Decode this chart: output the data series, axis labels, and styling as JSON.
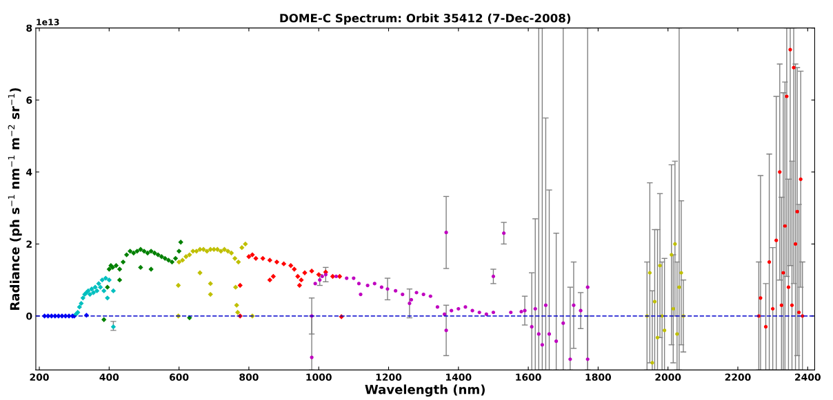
{
  "chart_data": {
    "type": "scatter",
    "title": "DOME-C Spectrum: Orbit 35412 (7-Dec-2008)",
    "xlabel": "Wavelength (nm)",
    "ylabel": "Radiance (ph s$^{−1}$ nm$^{−1}$ m$^{−2}$ sr$^{−1}$)",
    "annotations": [
      "1e13"
    ],
    "xlim": [
      190,
      2420
    ],
    "xticks": [
      200,
      400,
      600,
      800,
      1000,
      1200,
      1400,
      1600,
      1800,
      2000,
      2200,
      2400
    ],
    "ylim": [
      -1.5,
      8
    ],
    "yticks": [
      0,
      2,
      4,
      6,
      8
    ],
    "grid": false,
    "legend": false,
    "marker": "diamond",
    "ref_lines": [
      {
        "axis": "y",
        "value": 0,
        "color": "#0000cc",
        "line_style": "dashed"
      }
    ],
    "series": [
      {
        "color": "#0000ff",
        "x": [
          215,
          225,
          235,
          245,
          255,
          265,
          275,
          285,
          295,
          300,
          335
        ],
        "values": [
          0,
          0,
          0,
          0,
          0,
          0,
          0,
          0,
          0,
          0,
          0.02
        ]
      },
      {
        "color": "#00bfbf",
        "x": [
          305,
          310,
          315,
          320,
          325,
          330,
          335,
          340,
          345,
          350,
          355,
          360,
          365,
          370,
          375,
          380,
          385,
          390,
          395,
          400,
          412,
          412
        ],
        "values": [
          0.05,
          0.1,
          0.25,
          0.35,
          0.5,
          0.6,
          0.65,
          0.7,
          0.6,
          0.75,
          0.65,
          0.8,
          0.7,
          0.9,
          0.8,
          1.0,
          0.7,
          1.05,
          0.5,
          1.0,
          0.7,
          -0.3
        ],
        "errors": [
          null,
          null,
          null,
          null,
          null,
          null,
          null,
          null,
          null,
          null,
          null,
          null,
          null,
          null,
          null,
          null,
          null,
          null,
          null,
          null,
          null,
          [
            -0.4,
            -0.15
          ]
        ]
      },
      {
        "color": "#008000",
        "x": [
          385,
          395,
          400,
          405,
          410,
          420,
          430,
          430,
          440,
          450,
          460,
          470,
          480,
          490,
          490,
          500,
          510,
          520,
          520,
          530,
          540,
          550,
          560,
          570,
          580,
          590,
          600,
          605,
          630
        ],
        "values": [
          -0.1,
          0.8,
          1.3,
          1.4,
          1.35,
          1.4,
          1.3,
          1.0,
          1.5,
          1.7,
          1.8,
          1.75,
          1.8,
          1.85,
          1.35,
          1.8,
          1.75,
          1.8,
          1.3,
          1.75,
          1.7,
          1.65,
          1.6,
          1.55,
          1.5,
          1.6,
          1.8,
          2.05,
          -0.05
        ]
      },
      {
        "color": "#bfbf00",
        "x": [
          598,
          598,
          600,
          610,
          620,
          630,
          640,
          650,
          660,
          660,
          670,
          680,
          690,
          690,
          690,
          700,
          710,
          720,
          730,
          740,
          750,
          760,
          762,
          765,
          768,
          770,
          780,
          790,
          810
        ],
        "values": [
          0.85,
          0.0,
          1.5,
          1.55,
          1.65,
          1.7,
          1.8,
          1.8,
          1.85,
          1.2,
          1.85,
          1.8,
          1.85,
          0.9,
          0.6,
          1.85,
          1.85,
          1.8,
          1.85,
          1.8,
          1.75,
          1.6,
          0.8,
          0.3,
          0.1,
          1.5,
          1.9,
          2.0,
          0.0
        ]
      },
      {
        "color": "#ff0000",
        "x": [
          775,
          775,
          800,
          810,
          820,
          840,
          860,
          860,
          870,
          880,
          900,
          920,
          930,
          940,
          945,
          950,
          960,
          980,
          1000,
          1020,
          1040,
          1060,
          1065
        ],
        "values": [
          0.0,
          0.85,
          1.65,
          1.7,
          1.6,
          1.6,
          1.55,
          1.0,
          1.1,
          1.5,
          1.45,
          1.4,
          1.3,
          1.1,
          0.85,
          1.0,
          1.2,
          1.25,
          1.15,
          1.22,
          1.1,
          1.1,
          -0.02
        ]
      },
      {
        "color": "#bf00bf",
        "marker": "circle",
        "x": [
          980,
          980,
          990,
          1003,
          1010,
          1020,
          1050,
          1080,
          1100,
          1115,
          1120,
          1140,
          1160,
          1180,
          1197,
          1220,
          1240,
          1260,
          1265,
          1280,
          1300,
          1320,
          1340,
          1360,
          1365,
          1365,
          1380,
          1400,
          1420,
          1440,
          1460,
          1480,
          1500,
          1500,
          1530,
          1550,
          1580,
          1590,
          1610,
          1620,
          1630,
          1640,
          1650,
          1660,
          1680,
          1700,
          1720,
          1730,
          1750,
          1770,
          1770
        ],
        "values": [
          0.0,
          -1.15,
          0.9,
          1.0,
          1.1,
          1.15,
          1.1,
          1.05,
          1.05,
          0.9,
          0.6,
          0.85,
          0.9,
          0.8,
          0.75,
          0.7,
          0.6,
          0.35,
          0.45,
          0.65,
          0.6,
          0.55,
          0.25,
          0.05,
          2.32,
          -0.4,
          0.15,
          0.2,
          0.25,
          0.15,
          0.1,
          0.05,
          0.1,
          1.1,
          2.3,
          0.1,
          0.12,
          0.15,
          -0.3,
          0.2,
          -0.5,
          -0.8,
          0.3,
          -0.5,
          -0.7,
          -0.2,
          -1.2,
          0.3,
          0.15,
          0.8,
          -1.2
        ],
        "errors": [
          0.5,
          [
            -1.5,
            0.0
          ],
          null,
          0.15,
          null,
          0.2,
          null,
          null,
          null,
          null,
          null,
          null,
          null,
          null,
          0.3,
          null,
          null,
          0.4,
          null,
          null,
          null,
          null,
          null,
          null,
          1.0,
          0.7,
          null,
          null,
          null,
          null,
          null,
          null,
          null,
          0.2,
          0.3,
          null,
          null,
          0.4,
          1.5,
          2.5,
          [
            -1.5,
            8
          ],
          [
            -1.5,
            8
          ],
          [
            -1.5,
            5.5
          ],
          [
            -1.5,
            3.5
          ],
          [
            -1.5,
            2.3
          ],
          [
            -1.5,
            8
          ],
          [
            -1.5,
            0.8
          ],
          1.2,
          0.5,
          [
            -1.5,
            8
          ],
          [
            -1.5,
            0.0
          ]
        ]
      },
      {
        "color": "#bfbf00",
        "marker": "circle",
        "x": [
          1940,
          1948,
          1955,
          1962,
          1970,
          1977,
          1983,
          1990,
          2010,
          2015,
          2020,
          2026,
          2032,
          2038,
          2044
        ],
        "values": [
          0.0,
          1.2,
          -1.3,
          0.4,
          -0.6,
          1.4,
          0.0,
          -0.4,
          1.7,
          0.2,
          2.0,
          -0.5,
          0.8,
          1.2,
          0.0
        ],
        "errors": [
          1.5,
          [
            -1.3,
            3.7
          ],
          [
            -1.5,
            0.7
          ],
          [
            -1.5,
            2.4
          ],
          [
            -1.5,
            2.4
          ],
          [
            -0.6,
            3.4
          ],
          [
            -1.5,
            1.5
          ],
          [
            -1.5,
            1.6
          ],
          [
            -0.8,
            4.2
          ],
          [
            -1.3,
            1.7
          ],
          [
            0.0,
            4.3
          ],
          [
            -1.5,
            1.5
          ],
          [
            -1.5,
            8
          ],
          [
            -0.8,
            3.2
          ],
          [
            -1.0,
            1.0
          ]
        ]
      },
      {
        "color": "#ff0000",
        "marker": "circle",
        "x": [
          2260,
          2265,
          2280,
          2290,
          2300,
          2310,
          2320,
          2325,
          2330,
          2335,
          2340,
          2345,
          2350,
          2355,
          2360,
          2365,
          2370,
          2375,
          2380,
          2385
        ],
        "values": [
          0.0,
          0.5,
          -0.3,
          1.5,
          0.2,
          2.1,
          4.0,
          0.3,
          1.2,
          2.5,
          6.1,
          0.8,
          7.4,
          0.3,
          6.9,
          2.0,
          2.9,
          0.1,
          3.8,
          0.0
        ],
        "errors": [
          1.5,
          [
            -1.5,
            3.9
          ],
          1.2,
          [
            -1.5,
            4.5
          ],
          1.7,
          [
            -1.5,
            6.1
          ],
          [
            1.0,
            7.0
          ],
          [
            -1.5,
            3.3
          ],
          [
            -1.5,
            6.2
          ],
          [
            -1.5,
            6.5
          ],
          [
            1.1,
            8
          ],
          [
            -1.5,
            3.8
          ],
          [
            1.4,
            8
          ],
          [
            -1.5,
            4.3
          ],
          [
            0.9,
            8
          ],
          [
            -1.5,
            7.0
          ],
          [
            -1.1,
            6.9
          ],
          [
            -1.5,
            3.1
          ],
          [
            0.8,
            6.8
          ],
          1.5
        ]
      }
    ]
  }
}
